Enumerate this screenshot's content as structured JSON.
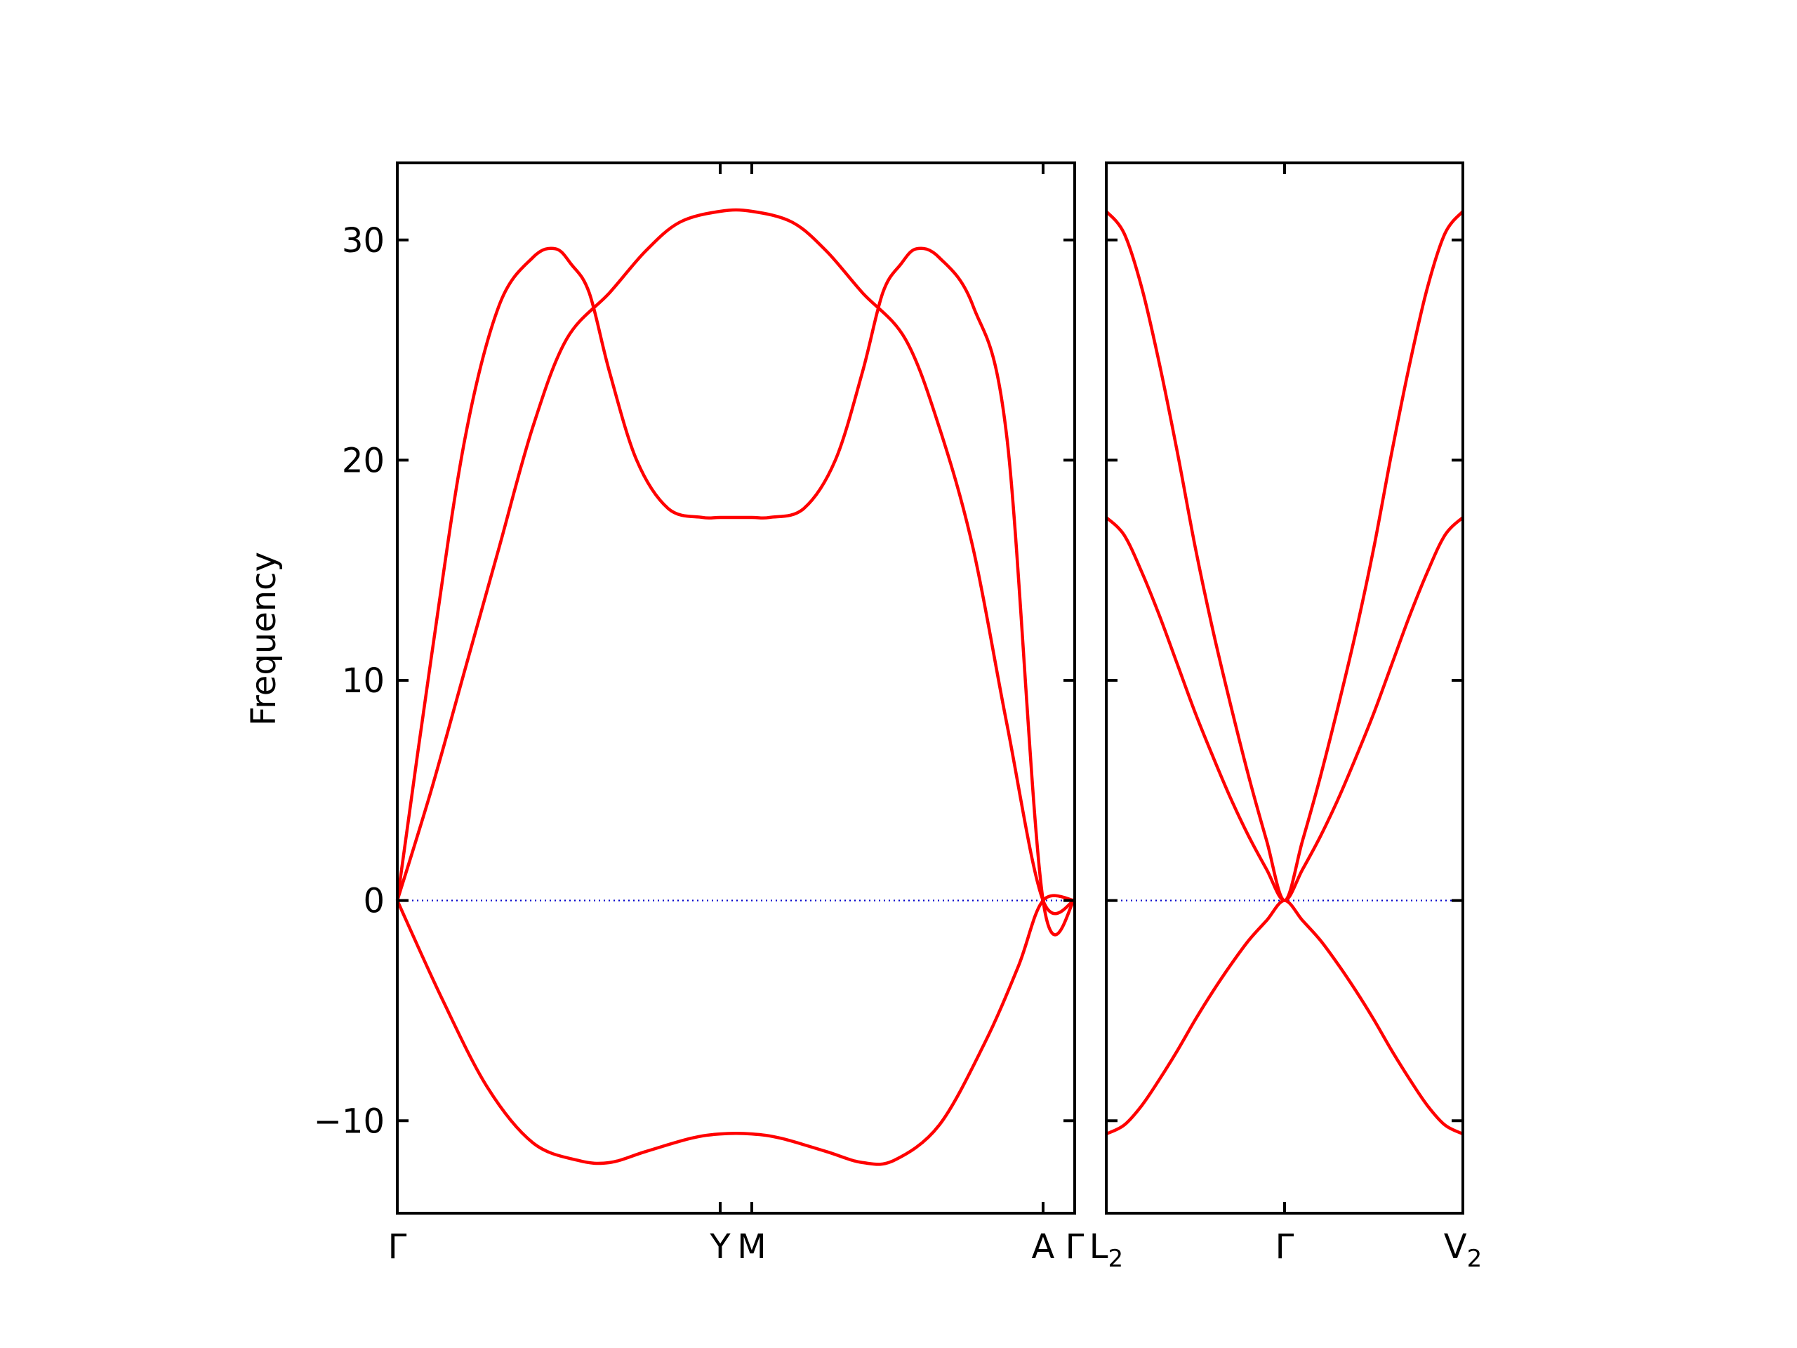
{
  "chart_data": {
    "type": "line",
    "ylabel": "Frequency",
    "ylim": [
      -14.2,
      33.5
    ],
    "yticks": [
      -10,
      0,
      10,
      20,
      30
    ],
    "ytick_labels": [
      "−10",
      "0",
      "10",
      "20",
      "30"
    ],
    "band_color": "#ff0000",
    "zero_line_color": "#0000cc",
    "panels": [
      {
        "name": "left",
        "xlim": [
          0,
          3.0
        ],
        "ticks": [
          {
            "pos": 0,
            "label": "Γ"
          },
          {
            "pos": 1.43,
            "label": "Y"
          },
          {
            "pos": 1.57,
            "label": "M"
          },
          {
            "pos": 2.86,
            "label": "A"
          },
          {
            "pos": 3.0,
            "label": "Γ"
          }
        ],
        "series": [
          {
            "x": [
              0,
              0.15,
              0.3,
              0.45,
              0.6,
              0.7,
              0.77,
              0.85,
              0.94,
              1.06,
              1.2,
              1.35,
              1.43,
              1.57,
              1.65,
              1.8,
              1.94,
              2.06,
              2.15,
              2.23,
              2.3,
              2.4,
              2.55,
              2.7,
              2.86,
              3.0
            ],
            "y": [
              0,
              11,
              21,
              27,
              29.2,
              29.6,
              28.9,
              27.6,
              24,
              20,
              17.8,
              17.4,
              17.4,
              17.4,
              17.4,
              17.8,
              20,
              24,
              27.6,
              28.9,
              29.6,
              29.2,
              27,
              21,
              0,
              0
            ]
          },
          {
            "x": [
              0,
              0.15,
              0.3,
              0.45,
              0.6,
              0.75,
              0.94,
              1.1,
              1.25,
              1.43,
              1.57,
              1.75,
              1.9,
              2.06,
              2.25,
              2.4,
              2.55,
              2.7,
              2.86,
              3.0
            ],
            "y": [
              0,
              5,
              10.5,
              16,
              21.5,
              25.5,
              27.6,
              29.5,
              30.8,
              31.3,
              31.3,
              30.8,
              29.5,
              27.6,
              25.5,
              21.5,
              16,
              8,
              0,
              0
            ]
          },
          {
            "x": [
              0,
              0.2,
              0.4,
              0.6,
              0.8,
              0.94,
              1.1,
              1.3,
              1.43,
              1.57,
              1.7,
              1.9,
              2.06,
              2.2,
              2.4,
              2.6,
              2.75,
              2.86,
              3.0
            ],
            "y": [
              0,
              -4.5,
              -8.5,
              -11,
              -11.8,
              -11.9,
              -11.4,
              -10.8,
              -10.6,
              -10.6,
              -10.8,
              -11.4,
              -11.9,
              -11.8,
              -10.2,
              -6.5,
              -3,
              0,
              0
            ]
          }
        ]
      },
      {
        "name": "right",
        "xlim": [
          0,
          2.0
        ],
        "ticks": [
          {
            "pos": 0,
            "label": "L2"
          },
          {
            "pos": 1.0,
            "label": "Γ"
          },
          {
            "pos": 2.0,
            "label": "V2"
          }
        ],
        "series": [
          {
            "x": [
              0,
              0.1,
              0.2,
              0.3,
              0.4,
              0.5,
              0.6,
              0.7,
              0.8,
              0.9,
              1.0,
              1.1,
              1.2,
              1.3,
              1.4,
              1.5,
              1.6,
              1.7,
              1.8,
              1.9,
              2.0
            ],
            "y": [
              31.3,
              30.3,
              27.8,
              24.3,
              20.3,
              16.0,
              12.2,
              8.8,
              5.6,
              2.7,
              0,
              2.7,
              5.6,
              8.8,
              12.2,
              16.0,
              20.3,
              24.3,
              27.8,
              30.3,
              31.3
            ]
          },
          {
            "x": [
              0,
              0.1,
              0.2,
              0.3,
              0.4,
              0.5,
              0.6,
              0.7,
              0.8,
              0.9,
              1.0,
              1.1,
              1.2,
              1.3,
              1.4,
              1.5,
              1.6,
              1.7,
              1.8,
              1.9,
              2.0
            ],
            "y": [
              17.4,
              16.6,
              14.9,
              12.9,
              10.7,
              8.5,
              6.5,
              4.6,
              2.9,
              1.4,
              0,
              1.4,
              2.9,
              4.6,
              6.5,
              8.5,
              10.7,
              12.9,
              14.9,
              16.6,
              17.4
            ]
          },
          {
            "x": [
              0,
              0.1,
              0.2,
              0.3,
              0.4,
              0.5,
              0.6,
              0.7,
              0.8,
              0.9,
              1.0,
              1.1,
              1.2,
              1.3,
              1.4,
              1.5,
              1.6,
              1.7,
              1.8,
              1.9,
              2.0
            ],
            "y": [
              -10.6,
              -10.2,
              -9.3,
              -8.1,
              -6.8,
              -5.4,
              -4.1,
              -2.9,
              -1.8,
              -0.9,
              0,
              -0.9,
              -1.8,
              -2.9,
              -4.1,
              -5.4,
              -6.8,
              -8.1,
              -9.3,
              -10.2,
              -10.6
            ]
          }
        ]
      }
    ]
  }
}
